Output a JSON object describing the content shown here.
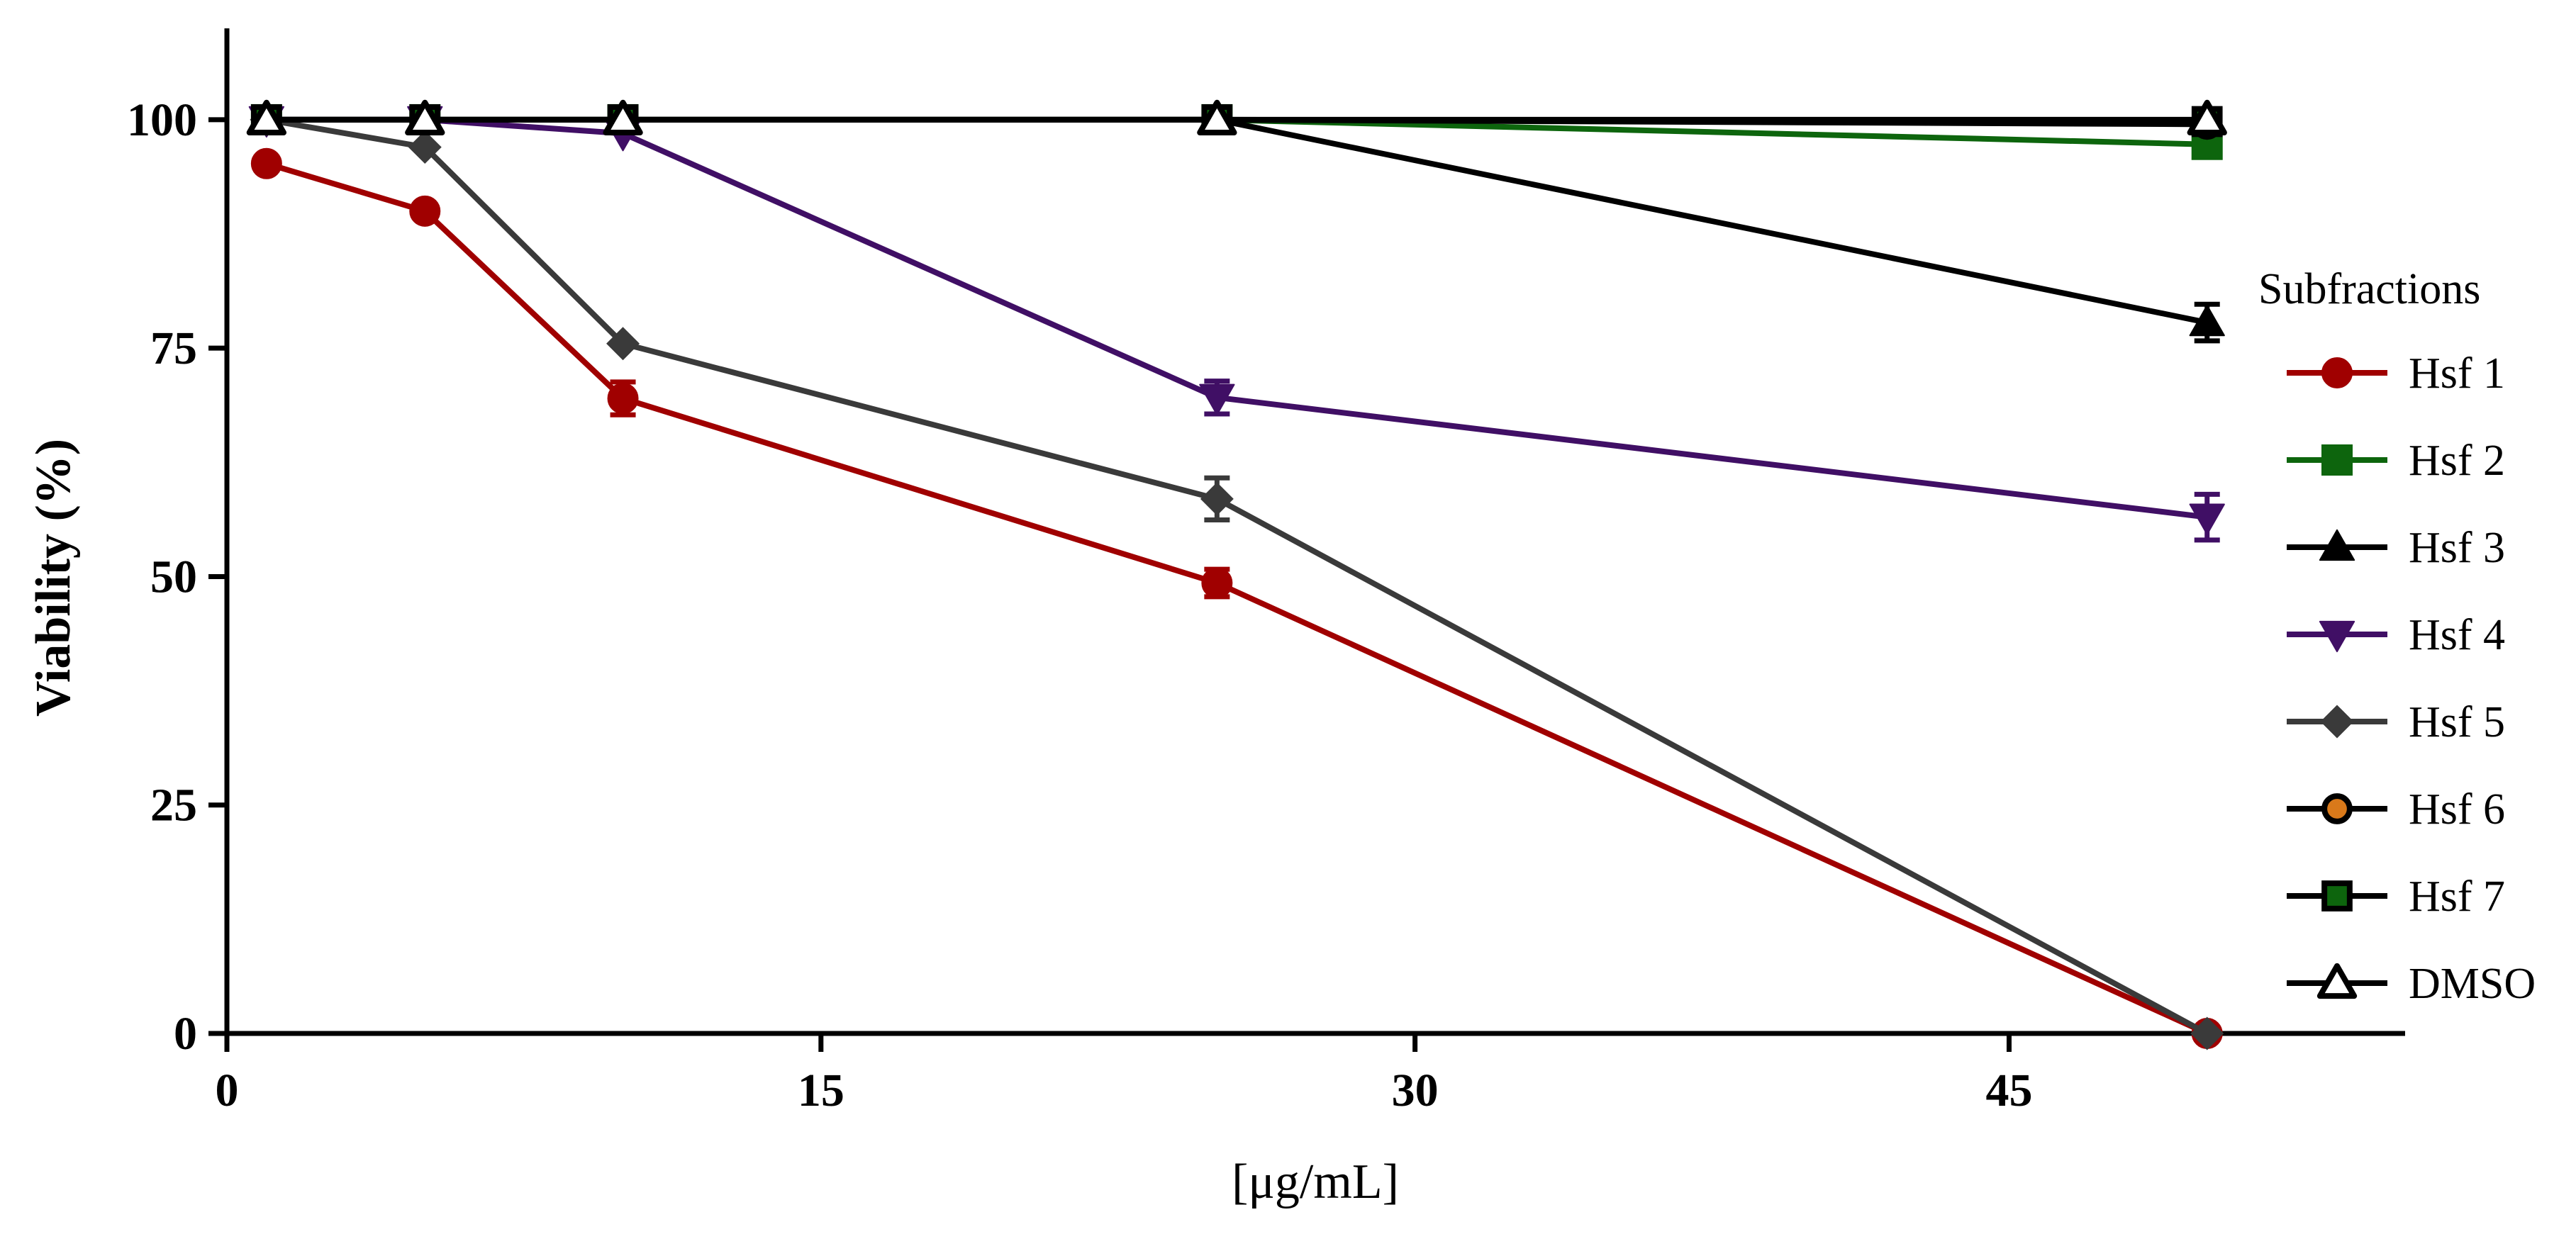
{
  "chart_data": {
    "type": "line",
    "title": "",
    "xlabel": "[μg/mL]",
    "ylabel": "Viability (%)",
    "xlim": [
      0,
      55
    ],
    "ylim": [
      0,
      110
    ],
    "xticks": [
      "0",
      "15",
      "30",
      "45"
    ],
    "xtick_values": [
      0,
      15,
      30,
      45
    ],
    "yticks": [
      "0",
      "25",
      "50",
      "75",
      "100"
    ],
    "ytick_values": [
      0,
      25,
      50,
      75,
      100
    ],
    "grid": false,
    "legend": {
      "title": "Subfractions",
      "position": "right"
    },
    "x": [
      1,
      5,
      10,
      25,
      50
    ],
    "series": [
      {
        "name": "Hsf 1",
        "color": "#a00000",
        "marker": "circle",
        "open": false,
        "values": [
          95.2,
          90.0,
          69.5,
          49.3,
          0
        ],
        "errors": [
          0,
          0,
          1.8,
          1.5,
          0
        ]
      },
      {
        "name": "Hsf 2",
        "color": "#0d650d",
        "marker": "square",
        "open": false,
        "values": [
          100,
          100,
          100,
          100,
          97.3
        ],
        "errors": [
          0,
          0,
          0,
          0,
          0.6
        ]
      },
      {
        "name": "Hsf 3",
        "color": "#000000",
        "marker": "triangle",
        "open": false,
        "values": [
          100,
          100,
          100,
          100,
          77.8
        ],
        "errors": [
          0,
          0,
          0,
          0,
          2.0
        ]
      },
      {
        "name": "Hsf 4",
        "color": "#400f65",
        "marker": "triangle-down",
        "open": false,
        "values": [
          100,
          100,
          98.5,
          69.6,
          56.5
        ],
        "errors": [
          0,
          0,
          0,
          1.8,
          2.5
        ]
      },
      {
        "name": "Hsf 5",
        "color": "#3a3a3a",
        "marker": "diamond",
        "open": false,
        "values": [
          100,
          97.0,
          75.5,
          58.5,
          0
        ],
        "errors": [
          0,
          0,
          0,
          2.3,
          0
        ]
      },
      {
        "name": "Hsf 6",
        "color": "#000000",
        "fill": "#d9791a",
        "marker": "circle",
        "open": true,
        "values": [
          100,
          100,
          100,
          100,
          99.5
        ],
        "errors": [
          0,
          0,
          0,
          0,
          0
        ]
      },
      {
        "name": "Hsf 7",
        "color": "#000000",
        "fill": "#0d650d",
        "marker": "square",
        "open": true,
        "values": [
          100,
          100,
          100,
          100,
          99.8
        ],
        "errors": [
          0,
          0,
          0,
          0,
          0
        ]
      },
      {
        "name": "DMSO",
        "color": "#000000",
        "fill": "#ffffff",
        "marker": "triangle",
        "open": true,
        "values": [
          100,
          100,
          100,
          100,
          100
        ],
        "errors": [
          0,
          0,
          0,
          0,
          0
        ]
      }
    ]
  }
}
